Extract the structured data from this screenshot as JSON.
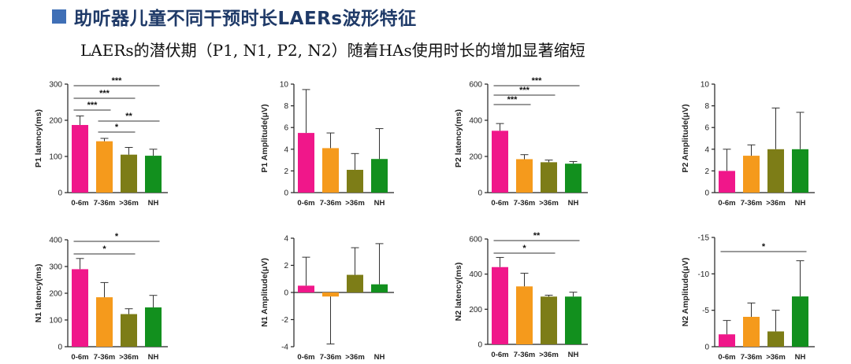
{
  "slide": {
    "title": "助听器儿童不同干预时长LAERs波形特征",
    "subtitle": "LAERs的潜伏期（P1, N1, P2, N2）随着HAs使用时长的增加显著缩短"
  },
  "colors": {
    "title_square": "#3f6fb6",
    "title_text": "#1f3a68",
    "bars": [
      "#f0178a",
      "#f59a1c",
      "#7d7d17",
      "#12901e"
    ]
  },
  "chart_data": [
    {
      "id": "p1-latency",
      "type": "bar",
      "ylabel": "P1 latency(ms)",
      "categories": [
        "0-6m",
        "7-36m",
        ">36m",
        "NH"
      ],
      "values": [
        187,
        142,
        105,
        102
      ],
      "errors": [
        25,
        8,
        20,
        18
      ],
      "ylim": [
        0,
        300
      ],
      "yticks": [
        0,
        100,
        200,
        300
      ],
      "error_direction": "up",
      "significance": [
        {
          "from": 0,
          "to": 3,
          "label": "***"
        },
        {
          "from": 0,
          "to": 2,
          "label": "***"
        },
        {
          "from": 0,
          "to": 1,
          "label": "***"
        },
        {
          "from": 1,
          "to": 3,
          "label": "**"
        },
        {
          "from": 1,
          "to": 2,
          "label": "*"
        }
      ]
    },
    {
      "id": "p1-amplitude",
      "type": "bar",
      "ylabel": "P1 Amplitude(μV)",
      "categories": [
        "0-6m",
        "7-36m",
        ">36m",
        "NH"
      ],
      "values": [
        5.5,
        4.1,
        2.1,
        3.1
      ],
      "errors": [
        4.0,
        1.4,
        1.5,
        2.8
      ],
      "ylim": [
        0,
        10
      ],
      "yticks": [
        0,
        2,
        4,
        6,
        8,
        10
      ],
      "error_direction": "up",
      "significance": []
    },
    {
      "id": "p2-latency",
      "type": "bar",
      "ylabel": "P2 latency(ms)",
      "categories": [
        "0-6m",
        "7-36m",
        ">36m",
        "NH"
      ],
      "values": [
        342,
        185,
        168,
        160
      ],
      "errors": [
        40,
        25,
        12,
        12
      ],
      "ylim": [
        0,
        600
      ],
      "yticks": [
        0,
        200,
        400,
        600
      ],
      "error_direction": "up",
      "significance": [
        {
          "from": 0,
          "to": 3,
          "label": "***"
        },
        {
          "from": 0,
          "to": 2,
          "label": "***"
        },
        {
          "from": 0,
          "to": 1,
          "label": "***"
        }
      ]
    },
    {
      "id": "p2-amplitude",
      "type": "bar",
      "ylabel": "P2 Amplitude(μV)",
      "categories": [
        "0-6m",
        "7-36m",
        ">36m",
        "NH"
      ],
      "values": [
        2.0,
        3.4,
        4.0,
        4.0
      ],
      "errors": [
        2.0,
        1.0,
        3.8,
        3.4
      ],
      "ylim": [
        0,
        10
      ],
      "yticks": [
        0,
        2,
        4,
        6,
        8,
        10
      ],
      "error_direction": "up",
      "significance": []
    },
    {
      "id": "n1-latency",
      "type": "bar",
      "ylabel": "N1 latency(ms)",
      "categories": [
        "0-6m",
        "7-36m",
        ">36m",
        "NH"
      ],
      "values": [
        290,
        185,
        122,
        147
      ],
      "errors": [
        40,
        55,
        20,
        45
      ],
      "ylim": [
        0,
        400
      ],
      "yticks": [
        0,
        100,
        200,
        300,
        400
      ],
      "error_direction": "up",
      "significance": [
        {
          "from": 0,
          "to": 3,
          "label": "*"
        },
        {
          "from": 0,
          "to": 2,
          "label": "*"
        }
      ]
    },
    {
      "id": "n1-amplitude",
      "type": "bar",
      "ylabel": "N1 Amplitude(μV)",
      "categories": [
        "0-6m",
        "7-36m",
        ">36m",
        "NH"
      ],
      "values": [
        0.5,
        -0.3,
        1.3,
        0.6
      ],
      "errors": [
        2.1,
        3.5,
        2.0,
        3.0
      ],
      "ylim": [
        -4,
        4
      ],
      "yticks": [
        -4,
        -2,
        0,
        2,
        4
      ],
      "error_direction": "away",
      "significance": []
    },
    {
      "id": "n2-latency",
      "type": "bar",
      "ylabel": "N2 latency(ms)",
      "categories": [
        "0-6m",
        "7-36m",
        ">36m",
        "NH"
      ],
      "values": [
        440,
        330,
        272,
        272
      ],
      "errors": [
        55,
        75,
        8,
        25
      ],
      "ylim": [
        0,
        600
      ],
      "yticks": [
        0,
        200,
        400,
        600
      ],
      "error_direction": "up",
      "significance": [
        {
          "from": 0,
          "to": 3,
          "label": "**"
        },
        {
          "from": 0,
          "to": 2,
          "label": "*"
        }
      ]
    },
    {
      "id": "n2-amplitude",
      "type": "bar",
      "ylabel": "N2 Amplitude(μV)",
      "categories": [
        "0-6m",
        "7-36m",
        ">36m",
        "NH"
      ],
      "values": [
        -1.7,
        -4.1,
        -2.1,
        -6.9
      ],
      "errors": [
        1.9,
        1.9,
        2.9,
        4.9
      ],
      "ylim": [
        0,
        -15
      ],
      "yticks": [
        0,
        -5,
        -10,
        -15
      ],
      "ytick_labels": [
        "0",
        "-5",
        "-10",
        "-15"
      ],
      "error_direction": "away",
      "inverted": true,
      "significance": [
        {
          "from": 0,
          "to": 3,
          "label": "*"
        }
      ]
    }
  ]
}
